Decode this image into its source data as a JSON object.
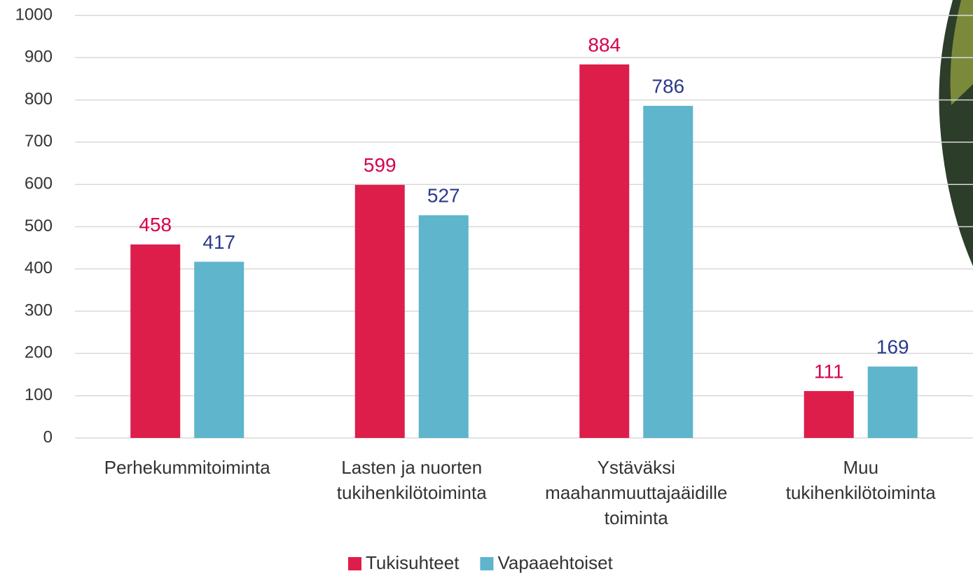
{
  "chart_data": {
    "type": "bar",
    "categories": [
      "Perhekummitoiminta",
      "Lasten ja nuorten tukihenkilötoiminta",
      "Ystäväksi maahanmuuttajaäidille toiminta",
      "Muu tukihenkilötoiminta"
    ],
    "series": [
      {
        "name": "Tukisuhteet",
        "color": "#dd1e4b",
        "label_color": "#d6004f",
        "values": [
          458,
          599,
          884,
          111
        ]
      },
      {
        "name": "Vapaaehtoiset",
        "color": "#5eb5cc",
        "label_color": "#2b3a8a",
        "values": [
          417,
          527,
          786,
          169
        ]
      }
    ],
    "ylim": [
      0,
      1000
    ],
    "yticks": [
      0,
      100,
      200,
      300,
      400,
      500,
      600,
      700,
      800,
      900,
      1000
    ],
    "grid": true,
    "legend": "bottom"
  }
}
